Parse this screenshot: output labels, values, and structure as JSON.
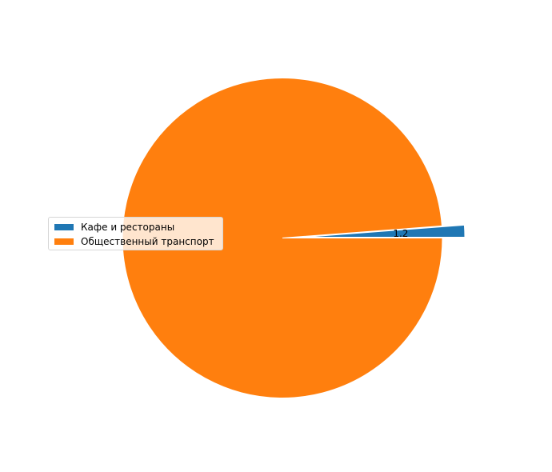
{
  "chart_data": {
    "type": "pie",
    "categories": [
      "Кафе и рестораны",
      "Общественный транспорт"
    ],
    "values": [
      1.2,
      98.8
    ],
    "data_labels": [
      "1.2",
      ""
    ],
    "colors": [
      "#1f77b4",
      "#ff7f0e"
    ],
    "exploded": [
      true,
      false
    ],
    "legend": {
      "placement": "center-left",
      "entries": [
        "Кафе и рестораны",
        "Общественный транспорт"
      ]
    },
    "title": "",
    "start_angle_deg": 0,
    "direction": "counterclockwise"
  }
}
